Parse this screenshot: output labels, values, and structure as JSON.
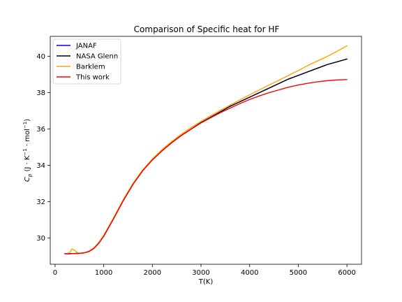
{
  "chart_data": {
    "type": "line",
    "title": "Comparison of Specific heat for HF",
    "xlabel": "T(K)",
    "ylabel": {
      "prefix": "C",
      "sub": "p",
      "unit_open": " (J · K",
      "sup1": "−1",
      "unit_mid": " · mol",
      "sup2": "−1",
      "unit_close": ")"
    },
    "xlim": [
      -100,
      6300
    ],
    "ylim": [
      28.55,
      41.1
    ],
    "xticks": [
      {
        "value": 0,
        "label": "0"
      },
      {
        "value": 1000,
        "label": "1000"
      },
      {
        "value": 2000,
        "label": "2000"
      },
      {
        "value": 3000,
        "label": "3000"
      },
      {
        "value": 4000,
        "label": "4000"
      },
      {
        "value": 5000,
        "label": "5000"
      },
      {
        "value": 6000,
        "label": "6000"
      }
    ],
    "yticks": [
      {
        "value": 30,
        "label": "30"
      },
      {
        "value": 32,
        "label": "32"
      },
      {
        "value": 34,
        "label": "34"
      },
      {
        "value": 36,
        "label": "36"
      },
      {
        "value": 38,
        "label": "38"
      },
      {
        "value": 40,
        "label": "40"
      }
    ],
    "grid": false,
    "legend_position": "top-left",
    "series": [
      {
        "name": "JANAF",
        "color": "#0000ff",
        "x": [
          200,
          300,
          400,
          500,
          600,
          700,
          800,
          900,
          1000,
          1200,
          1400,
          1600,
          1800,
          2000,
          2200,
          2400,
          2600,
          2800,
          3000,
          3200,
          3400,
          3600,
          3800,
          4000,
          4200,
          4400,
          4600,
          4800,
          5000,
          5200,
          5400,
          5600,
          5800,
          6000
        ],
        "y": [
          29.13,
          29.13,
          29.14,
          29.15,
          29.18,
          29.26,
          29.43,
          29.72,
          30.1,
          31.05,
          32.05,
          32.95,
          33.7,
          34.3,
          34.8,
          35.25,
          35.65,
          36.0,
          36.35,
          36.65,
          36.95,
          37.25,
          37.5,
          37.75,
          38.0,
          38.25,
          38.5,
          38.75,
          38.95,
          39.15,
          39.35,
          39.55,
          39.7,
          39.85
        ]
      },
      {
        "name": "NASA Glenn",
        "color": "#000000",
        "x": [
          200,
          300,
          400,
          500,
          600,
          700,
          800,
          900,
          1000,
          1200,
          1400,
          1600,
          1800,
          2000,
          2200,
          2400,
          2600,
          2800,
          3000,
          3200,
          3400,
          3600,
          3800,
          4000,
          4200,
          4400,
          4600,
          4800,
          5000,
          5200,
          5400,
          5600,
          5800,
          6000
        ],
        "y": [
          29.13,
          29.13,
          29.14,
          29.15,
          29.18,
          29.26,
          29.43,
          29.72,
          30.1,
          31.05,
          32.05,
          32.95,
          33.7,
          34.3,
          34.8,
          35.25,
          35.65,
          36.0,
          36.35,
          36.65,
          36.95,
          37.25,
          37.5,
          37.75,
          38.0,
          38.25,
          38.5,
          38.75,
          38.95,
          39.15,
          39.35,
          39.55,
          39.7,
          39.85
        ]
      },
      {
        "name": "Barklem",
        "color": "#ffa500",
        "x": [
          200,
          250,
          300,
          350,
          400,
          450,
          500,
          550,
          600,
          700,
          800,
          900,
          1000,
          1200,
          1400,
          1600,
          1800,
          2000,
          2200,
          2400,
          2600,
          2800,
          3000,
          3200,
          3400,
          3600,
          3800,
          4000,
          4200,
          4400,
          4600,
          4800,
          5000,
          5200,
          5400,
          5600,
          5800,
          6000
        ],
        "y": [
          29.13,
          29.13,
          29.2,
          29.4,
          29.32,
          29.2,
          29.16,
          29.15,
          29.18,
          29.28,
          29.46,
          29.76,
          30.15,
          31.1,
          32.1,
          33.0,
          33.75,
          34.35,
          34.87,
          35.32,
          35.72,
          36.08,
          36.42,
          36.73,
          37.03,
          37.32,
          37.6,
          37.88,
          38.15,
          38.42,
          38.68,
          38.95,
          39.22,
          39.5,
          39.75,
          40.0,
          40.28,
          40.58
        ]
      },
      {
        "name": "This work",
        "color": "#ff0000",
        "x": [
          200,
          300,
          400,
          500,
          600,
          700,
          800,
          900,
          1000,
          1200,
          1400,
          1600,
          1800,
          2000,
          2200,
          2400,
          2600,
          2800,
          3000,
          3200,
          3400,
          3600,
          3800,
          4000,
          4200,
          4400,
          4600,
          4800,
          5000,
          5200,
          5400,
          5600,
          5800,
          6000
        ],
        "y": [
          29.13,
          29.13,
          29.14,
          29.15,
          29.18,
          29.26,
          29.43,
          29.72,
          30.1,
          31.05,
          32.05,
          32.95,
          33.7,
          34.3,
          34.8,
          35.25,
          35.65,
          36.0,
          36.33,
          36.62,
          36.9,
          37.15,
          37.4,
          37.62,
          37.82,
          38.0,
          38.15,
          38.3,
          38.42,
          38.52,
          38.6,
          38.66,
          38.7,
          38.72
        ]
      }
    ]
  }
}
